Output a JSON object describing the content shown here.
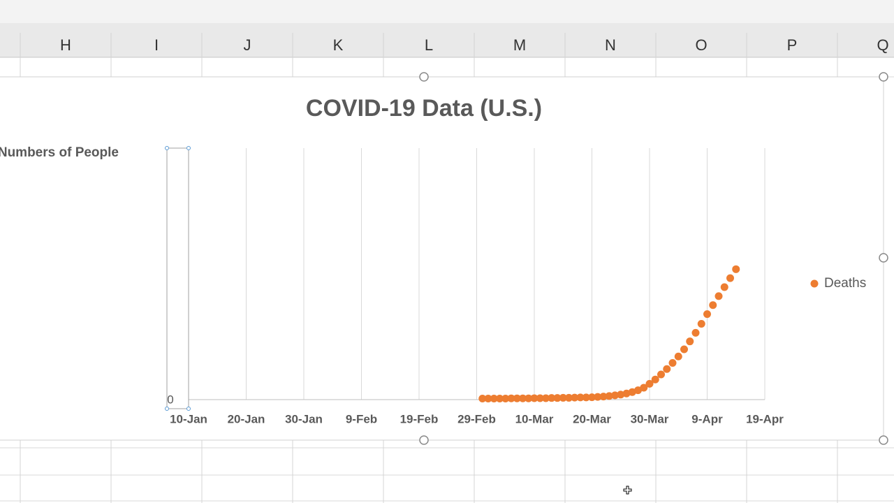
{
  "spreadsheet": {
    "columns": [
      "H",
      "I",
      "J",
      "K",
      "L",
      "M",
      "N",
      "O",
      "P",
      "Q"
    ]
  },
  "chart_data": {
    "type": "scatter",
    "title": "COVID-19 Data (U.S.)",
    "y_label": "Numbers of People",
    "x": [
      61,
      62,
      63,
      64,
      65,
      66,
      67,
      68,
      69,
      70,
      71,
      72,
      73,
      74,
      75,
      76,
      77,
      78,
      79,
      80,
      81,
      82,
      83,
      84,
      85,
      86,
      87,
      88,
      89,
      90,
      91,
      92,
      93,
      94,
      95,
      96,
      97,
      98,
      99,
      100,
      101,
      102,
      103,
      104,
      105
    ],
    "series": [
      {
        "name": "Deaths",
        "color": "#ed7d31",
        "values": [
          300,
          300,
          300,
          300,
          300,
          350,
          350,
          350,
          350,
          400,
          400,
          400,
          450,
          450,
          500,
          500,
          550,
          600,
          600,
          650,
          750,
          850,
          1000,
          1200,
          1400,
          1700,
          2100,
          2600,
          3300,
          4400,
          5600,
          7000,
          8500,
          10200,
          12000,
          14000,
          16200,
          18600,
          21100,
          23800,
          26300,
          28800,
          31300,
          33800,
          36300
        ]
      }
    ],
    "xlim": [
      10,
      110
    ],
    "xticks": [
      {
        "value": 10,
        "label": "10-Jan"
      },
      {
        "value": 20,
        "label": "20-Jan"
      },
      {
        "value": 30,
        "label": "30-Jan"
      },
      {
        "value": 40,
        "label": "9-Feb"
      },
      {
        "value": 50,
        "label": "19-Feb"
      },
      {
        "value": 60,
        "label": "29-Feb"
      },
      {
        "value": 70,
        "label": "10-Mar"
      },
      {
        "value": 80,
        "label": "20-Mar"
      },
      {
        "value": 90,
        "label": "30-Mar"
      },
      {
        "value": 100,
        "label": "9-Apr"
      },
      {
        "value": 110,
        "label": "19-Apr"
      }
    ],
    "ylim": [
      0,
      70000
    ],
    "yticks": [
      0
    ],
    "grid": "x",
    "legend": "right"
  }
}
